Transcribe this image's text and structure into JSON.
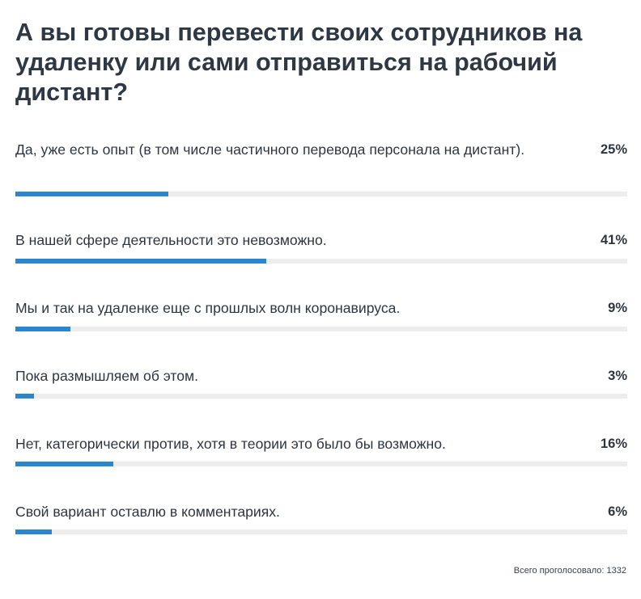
{
  "poll": {
    "title": "А вы готовы перевести своих сотрудников на удаленку или сами отправиться на рабочий дистант?",
    "options": [
      {
        "label": "Да, уже есть опыт (в том числе частичного перевода персонала на дистант).",
        "percent_label": "25%",
        "percent": 25
      },
      {
        "label": "В нашей сфере деятельности это невозможно.",
        "percent_label": "41%",
        "percent": 41
      },
      {
        "label": "Мы и так на удаленке еще с прошлых волн коронавируса.",
        "percent_label": "9%",
        "percent": 9
      },
      {
        "label": "Пока размышляем об этом.",
        "percent_label": "3%",
        "percent": 3
      },
      {
        "label": "Нет, категорически против, хотя в теории это было бы возможно.",
        "percent_label": "16%",
        "percent": 16
      },
      {
        "label": "Свой вариант оставлю в комментариях.",
        "percent_label": "6%",
        "percent": 6
      }
    ],
    "total_label": "Всего проголосовало: 1332"
  },
  "colors": {
    "bar_fill": "#2a86cf",
    "bar_track": "#ededed",
    "text": "#2f3540"
  }
}
